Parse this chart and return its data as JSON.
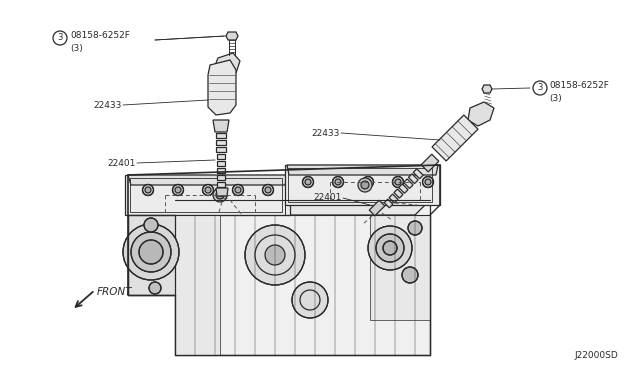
{
  "bg_color": "#ffffff",
  "line_color": "#2a2a2a",
  "text_color": "#2a2a2a",
  "diagram_id": "J22000SD",
  "labels": {
    "bolt_left_num": "08158-6252F",
    "bolt_left_sub": "(3)",
    "coil_left": "22433",
    "plug_left": "22401",
    "bolt_right_num": "08158-6252F",
    "bolt_right_sub": "(3)",
    "coil_right": "22433",
    "plug_right": "22401",
    "front": "FRONT"
  },
  "figsize": [
    6.4,
    3.72
  ],
  "dpi": 100
}
